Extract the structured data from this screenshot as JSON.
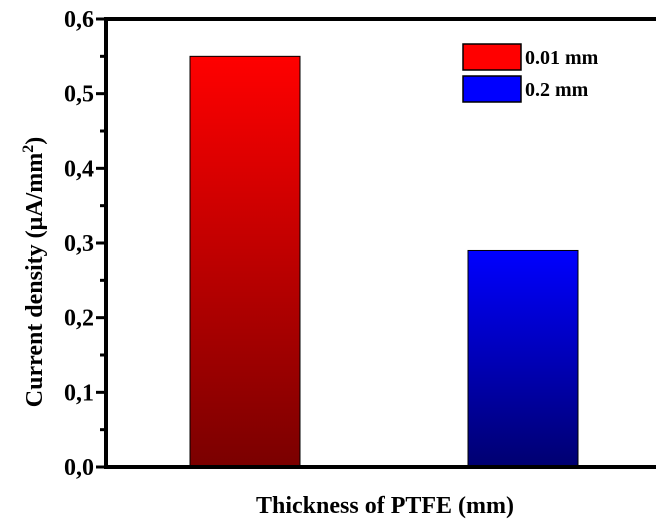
{
  "chart_data": {
    "type": "bar",
    "title": "",
    "xlabel": "Thickness of PTFE (mm)",
    "ylabel_main": "Current density (μA/mm",
    "ylabel_sup": "2",
    "ylabel_close": ")",
    "ylim": [
      0,
      0.6
    ],
    "yticks": [
      {
        "value": 0.0,
        "label": "0,0"
      },
      {
        "value": 0.1,
        "label": "0,1"
      },
      {
        "value": 0.2,
        "label": "0,2"
      },
      {
        "value": 0.3,
        "label": "0,3"
      },
      {
        "value": 0.4,
        "label": "0,4"
      },
      {
        "value": 0.5,
        "label": "0,5"
      },
      {
        "value": 0.6,
        "label": "0,6"
      }
    ],
    "legend_position": "top-right",
    "grid": false,
    "series": [
      {
        "name": "0.01 mm",
        "value": 0.55,
        "color_top": "#ff0000",
        "color_bottom": "#7a0000"
      },
      {
        "name": "0.2 mm",
        "value": 0.29,
        "color_top": "#0000ff",
        "color_bottom": "#000070"
      }
    ]
  }
}
